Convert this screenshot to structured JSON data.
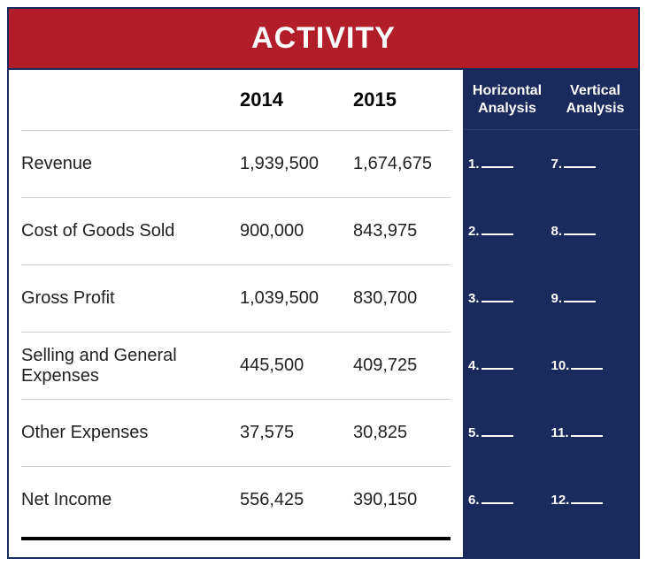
{
  "title": "ACTIVITY",
  "colors": {
    "title_bg": "#b11d28",
    "title_fg": "#ffffff",
    "navy": "#1a2a5c",
    "row_border": "#cfcfcf",
    "text": "#222222",
    "blank_line": "#ffffff"
  },
  "typography": {
    "title_fontsize": 34,
    "header_fontsize": 22,
    "analysis_header_fontsize": 16,
    "cell_fontsize": 20,
    "blank_fontsize": 15
  },
  "headers": {
    "y2014": "2014",
    "y2015": "2015",
    "horizontal_line1": "Horizontal",
    "horizontal_line2": "Analysis",
    "vertical_line1": "Vertical",
    "vertical_line2": "Analysis"
  },
  "rows": [
    {
      "label": "Revenue",
      "y2014": "1,939,500",
      "y2015": "1,674,675",
      "h_num": "1.",
      "v_num": "7."
    },
    {
      "label": "Cost of Goods Sold",
      "y2014": "900,000",
      "y2015": "843,975",
      "h_num": "2.",
      "v_num": "8."
    },
    {
      "label": "Gross Profit",
      "y2014": "1,039,500",
      "y2015": "830,700",
      "h_num": "3.",
      "v_num": "9."
    },
    {
      "label": "Selling and General Expenses",
      "y2014": "445,500",
      "y2015": "409,725",
      "h_num": "4.",
      "v_num": "10."
    },
    {
      "label": "Other Expenses",
      "y2014": "37,575",
      "y2015": "30,825",
      "h_num": "5.",
      "v_num": "11."
    },
    {
      "label": "Net Income",
      "y2014": "556,425",
      "y2015": "390,150",
      "h_num": "6.",
      "v_num": "12."
    }
  ]
}
